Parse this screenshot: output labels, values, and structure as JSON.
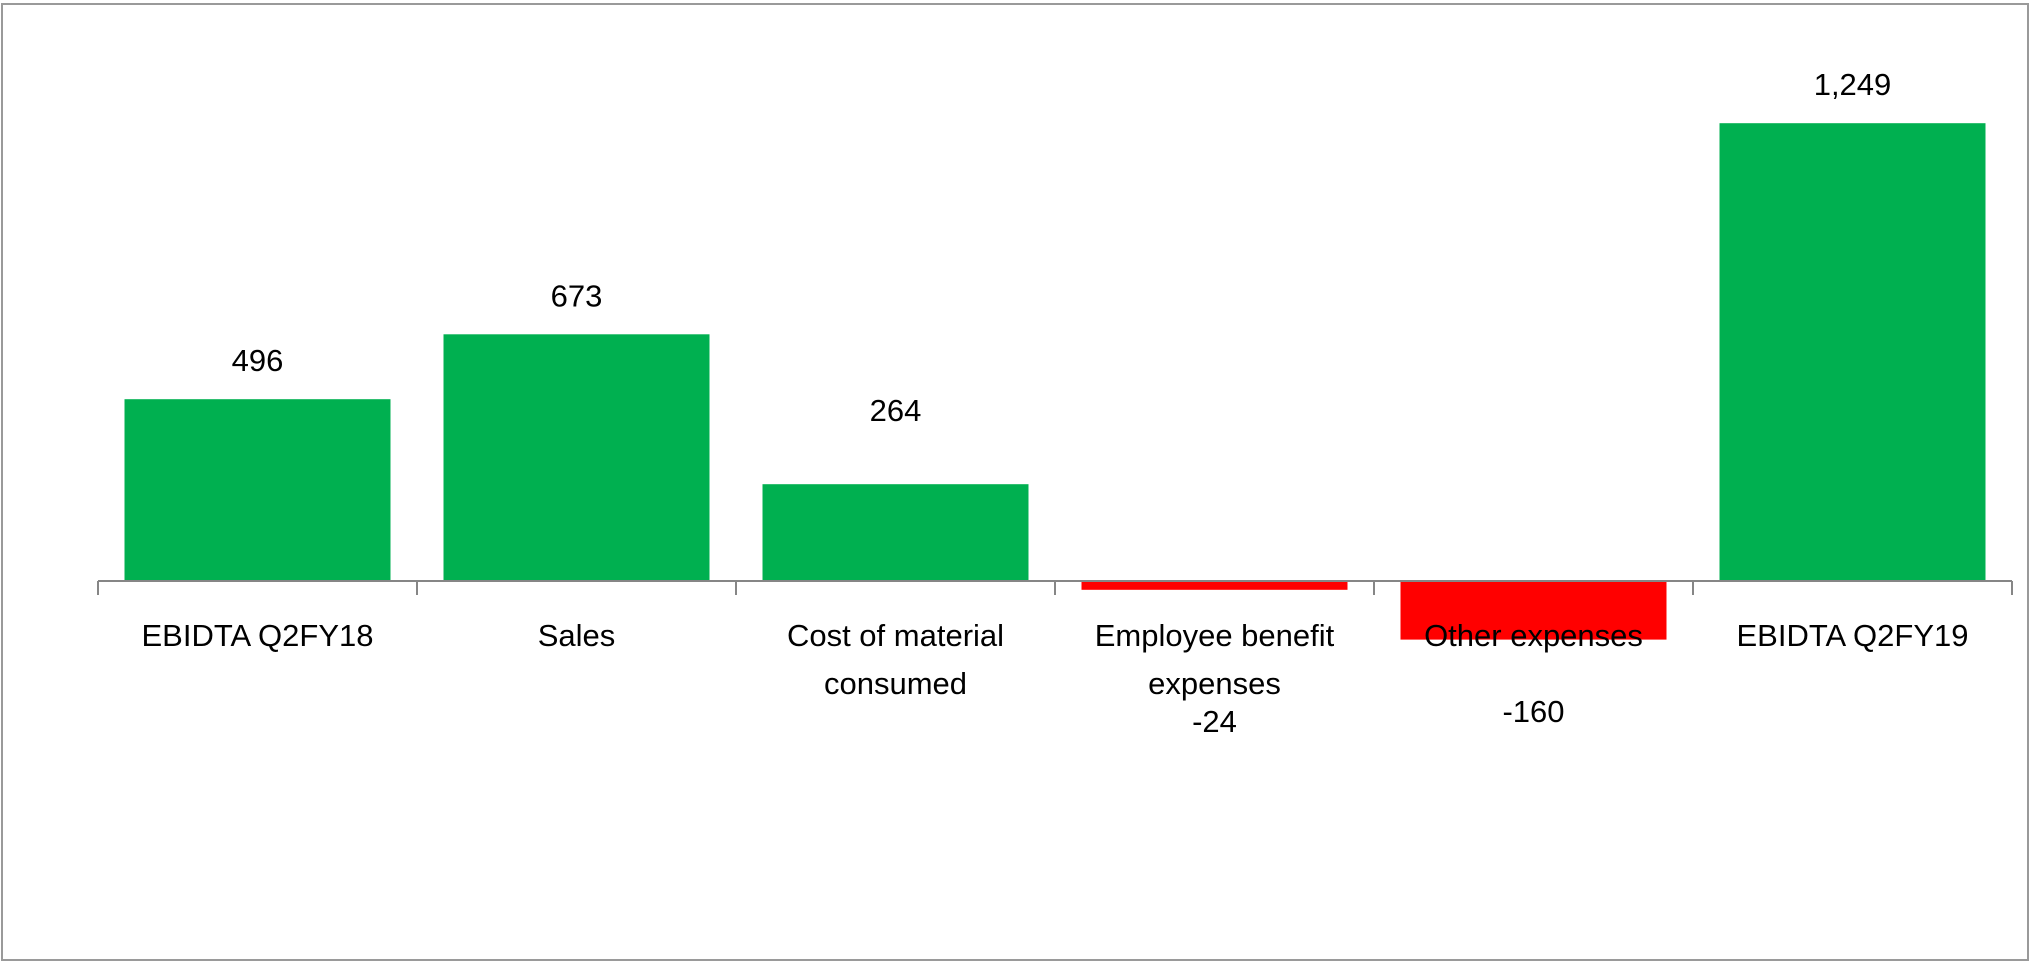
{
  "chart_data": {
    "type": "bar",
    "categories": [
      [
        "EBIDTA Q2FY18"
      ],
      [
        "Sales"
      ],
      [
        "Cost of material",
        "consumed"
      ],
      [
        "Employee benefit",
        "expenses"
      ],
      [
        "Other expenses"
      ],
      [
        "EBIDTA Q2FY19"
      ]
    ],
    "values": [
      496,
      673,
      264,
      -24,
      -160,
      1249
    ],
    "data_labels": [
      "496",
      "673",
      "264",
      "-24",
      "-160",
      "1,249"
    ],
    "colors": {
      "positive": "#00B050",
      "negative": "#FF0000",
      "axis": "#868686",
      "frame": "#9a9a9a"
    },
    "title": "",
    "xlabel": "",
    "ylabel": "",
    "ylim": [
      -1040,
      1420
    ],
    "grid": false,
    "legend": "none"
  }
}
